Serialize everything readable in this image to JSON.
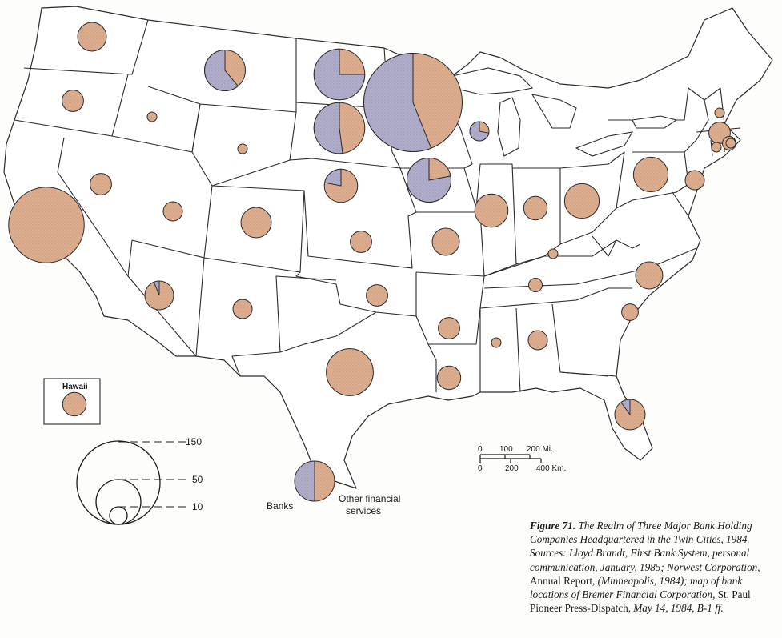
{
  "colors": {
    "banks": "#a9a8c4",
    "other_financial_services": "#d9a98a",
    "outline": "#2a2a2a",
    "background": "#fdfdfb"
  },
  "legend": {
    "size_values": [
      "150",
      "50",
      "10"
    ],
    "pie_labels": {
      "banks": "Banks",
      "other": "Other financial\nservices"
    }
  },
  "inset": {
    "label": "Hawaii"
  },
  "scale_bar": {
    "miles_ticks": [
      "0",
      "100",
      "200 Mi."
    ],
    "km_ticks": [
      "0",
      "200",
      "400 Km."
    ]
  },
  "caption": {
    "figure": "Figure 71.",
    "seg1": " The Realm of Three Major Bank Holding Companies Headquartered in the Twin Cities, 1984. Sources: Lloyd Brandt, First Bank System, personal communication, January, 1985; Norwest Corporation, ",
    "title1": "Annual Report",
    "seg2": ", (Minneapolis, 1984); map of bank locations of Bremer Financial Corporation, ",
    "title2": "St. Paul Pioneer Press-Dispatch",
    "seg3": ", May 14, 1984, B-1 ff."
  },
  "state_pies": [
    {
      "state": "Washington",
      "size": 9,
      "banks_share": 0
    },
    {
      "state": "Oregon",
      "size": 5,
      "banks_share": 0
    },
    {
      "state": "California",
      "size": 62,
      "banks_share": 0
    },
    {
      "state": "Idaho",
      "size": 1,
      "banks_share": 0
    },
    {
      "state": "Nevada",
      "size": 5,
      "banks_share": 0
    },
    {
      "state": "Utah",
      "size": 4,
      "banks_share": 0
    },
    {
      "state": "Arizona",
      "size": 9,
      "banks_share": 0.06
    },
    {
      "state": "Montana",
      "size": 18,
      "banks_share": 0.61
    },
    {
      "state": "Wyoming",
      "size": 1,
      "banks_share": 0
    },
    {
      "state": "Colorado",
      "size": 10,
      "banks_share": 0
    },
    {
      "state": "New Mexico",
      "size": 4,
      "banks_share": 0
    },
    {
      "state": "North Dakota",
      "size": 28,
      "banks_share": 0.75
    },
    {
      "state": "South Dakota",
      "size": 28,
      "banks_share": 0.52
    },
    {
      "state": "Nebraska",
      "size": 12,
      "banks_share": 0.22
    },
    {
      "state": "Kansas",
      "size": 5,
      "banks_share": 0
    },
    {
      "state": "Oklahoma",
      "size": 5,
      "banks_share": 0
    },
    {
      "state": "Texas",
      "size": 24,
      "banks_share": 0
    },
    {
      "state": "Minnesota",
      "size": 105,
      "banks_share": 0.56
    },
    {
      "state": "Iowa",
      "size": 21,
      "banks_share": 0.78
    },
    {
      "state": "Missouri",
      "size": 8,
      "banks_share": 0
    },
    {
      "state": "Wisconsin",
      "size": 4,
      "banks_share": 0.72
    },
    {
      "state": "Illinois",
      "size": 12,
      "banks_share": 0
    },
    {
      "state": "Indiana",
      "size": 6,
      "banks_share": 0
    },
    {
      "state": "Ohio",
      "size": 13,
      "banks_share": 0
    },
    {
      "state": "Kentucky",
      "size": 1,
      "banks_share": 0
    },
    {
      "state": "Tennessee",
      "size": 2,
      "banks_share": 0
    },
    {
      "state": "Arkansas",
      "size": 5,
      "banks_share": 0
    },
    {
      "state": "Louisiana",
      "size": 6,
      "banks_share": 0
    },
    {
      "state": "Mississippi",
      "size": 1,
      "banks_share": 0
    },
    {
      "state": "Alabama",
      "size": 4,
      "banks_share": 0
    },
    {
      "state": "South Carolina",
      "size": 3,
      "banks_share": 0
    },
    {
      "state": "North Carolina",
      "size": 8,
      "banks_share": 0
    },
    {
      "state": "Florida",
      "size": 10,
      "banks_share": 0.1
    },
    {
      "state": "Pennsylvania",
      "size": 13,
      "banks_share": 0
    },
    {
      "state": "New Jersey",
      "size": 4,
      "banks_share": 0
    },
    {
      "state": "Vermont",
      "size": 1,
      "banks_share": 0
    },
    {
      "state": "New Hampshire",
      "size": 5,
      "banks_share": 0
    },
    {
      "state": "Massachusetts",
      "size": 2,
      "banks_share": 0
    },
    {
      "state": "Connecticut",
      "size": 1,
      "banks_share": 0
    },
    {
      "state": "Rhode Island",
      "size": 1,
      "banks_share": 0
    },
    {
      "state": "Hawaii",
      "size": 6,
      "banks_share": 0
    }
  ]
}
